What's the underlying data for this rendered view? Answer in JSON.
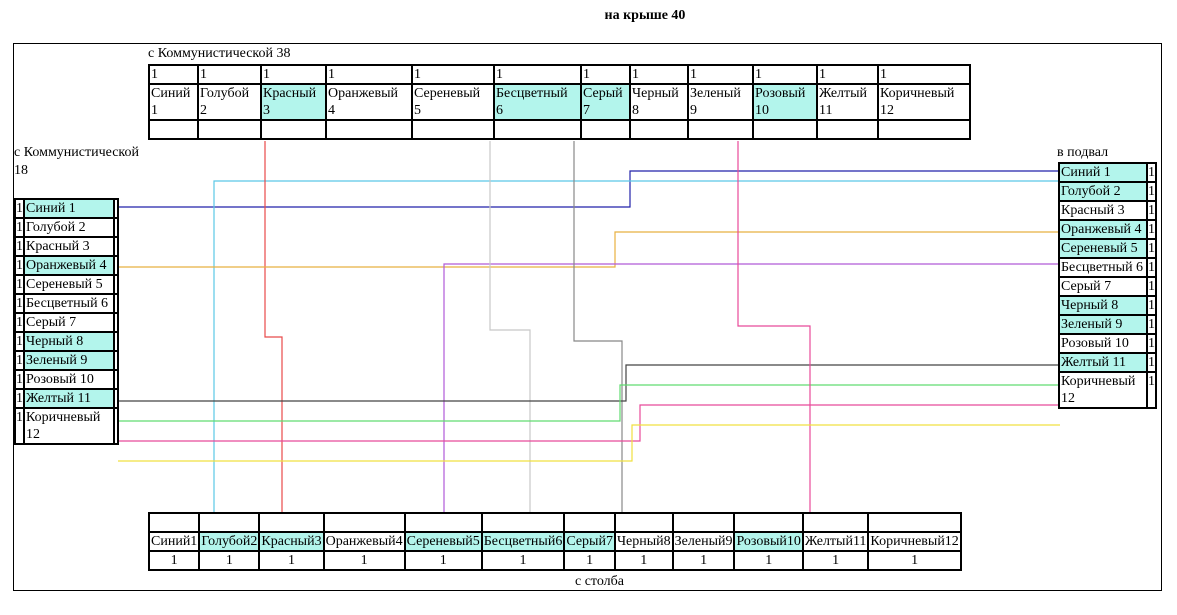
{
  "title": "на крыше 40",
  "top_label": "с Коммунистической 38",
  "left_label": "с Коммунистической 18",
  "right_label": "в подвал",
  "bottom_label": "с столба",
  "colors": {
    "highlight": "#b3f5ec",
    "blue": "#2222aa",
    "cyan": "#5bc8e6",
    "red": "#e84a4a",
    "orange": "#e8b040",
    "violet": "#b05ad8",
    "clear": "#c8c8c8",
    "gray": "#888888",
    "black": "#444444",
    "green": "#60dc70",
    "pink": "#e84a9a",
    "yellow": "#f0e040"
  },
  "top_table": {
    "nums": [
      "1",
      "1",
      "1",
      "1",
      "1",
      "1",
      "1",
      "1",
      "1",
      "1",
      "1",
      "1"
    ],
    "cells": [
      {
        "name": "Синий",
        "n": "1",
        "hl": false
      },
      {
        "name": "Голубой",
        "n": "2",
        "hl": false
      },
      {
        "name": "Красный",
        "n": "3",
        "hl": true
      },
      {
        "name": "Оранжевый",
        "n": "4",
        "hl": false
      },
      {
        "name": "Сереневый",
        "n": "5",
        "hl": false
      },
      {
        "name": "Бесцветный",
        "n": "6",
        "hl": true
      },
      {
        "name": "Серый",
        "n": "7",
        "hl": true
      },
      {
        "name": "Черный",
        "n": "8",
        "hl": false
      },
      {
        "name": "Зеленый",
        "n": "9",
        "hl": false
      },
      {
        "name": "Розовый",
        "n": "10",
        "hl": true
      },
      {
        "name": "Желтый",
        "n": "11",
        "hl": false
      },
      {
        "name": "Коричневый",
        "n": "12",
        "hl": false
      }
    ]
  },
  "left_table": [
    {
      "num": "1",
      "name": "Синий 1",
      "hl": true
    },
    {
      "num": "1",
      "name": "Голубой 2",
      "hl": false
    },
    {
      "num": "1",
      "name": "Красный 3",
      "hl": false
    },
    {
      "num": "1",
      "name": "Оранжевый 4",
      "hl": true
    },
    {
      "num": "1",
      "name": "Сереневый 5",
      "hl": false
    },
    {
      "num": "1",
      "name": "Бесцветный 6",
      "hl": false
    },
    {
      "num": "1",
      "name": "Серый 7",
      "hl": false
    },
    {
      "num": "1",
      "name": "Черный 8",
      "hl": true
    },
    {
      "num": "1",
      "name": "Зеленый 9",
      "hl": true
    },
    {
      "num": "1",
      "name": "Розовый 10",
      "hl": false
    },
    {
      "num": "1",
      "name": "Желтый 11",
      "hl": true
    },
    {
      "num": "1",
      "name": "Коричневый 12",
      "hl": false
    }
  ],
  "right_table": [
    {
      "num": "1",
      "name": "Синий 1",
      "hl": true
    },
    {
      "num": "1",
      "name": "Голубой 2",
      "hl": true
    },
    {
      "num": "1",
      "name": "Красный 3",
      "hl": false
    },
    {
      "num": "1",
      "name": "Оранжевый 4",
      "hl": true
    },
    {
      "num": "1",
      "name": "Сереневый 5",
      "hl": true
    },
    {
      "num": "1",
      "name": "Бесцветный 6",
      "hl": false
    },
    {
      "num": "1",
      "name": "Серый 7",
      "hl": false
    },
    {
      "num": "1",
      "name": "Черный 8",
      "hl": true
    },
    {
      "num": "1",
      "name": "Зеленый 9",
      "hl": true
    },
    {
      "num": "1",
      "name": "Розовый 10",
      "hl": false
    },
    {
      "num": "1",
      "name": "Желтый 11",
      "hl": true
    },
    {
      "num": "1",
      "name": "Коричневый 12",
      "hl": false
    }
  ],
  "bottom_table": [
    {
      "name": "Синий1",
      "num": "1",
      "hl": false
    },
    {
      "name": "Голубой2",
      "num": "1",
      "hl": true
    },
    {
      "name": "Красный3",
      "num": "1",
      "hl": true
    },
    {
      "name": "Оранжевый4",
      "num": "1",
      "hl": false
    },
    {
      "name": "Сереневый5",
      "num": "1",
      "hl": true
    },
    {
      "name": "Бесцветный6",
      "num": "1",
      "hl": true
    },
    {
      "name": "Серый7",
      "num": "1",
      "hl": true
    },
    {
      "name": "Черный8",
      "num": "1",
      "hl": false
    },
    {
      "name": "Зеленый9",
      "num": "1",
      "hl": false
    },
    {
      "name": "Розовый10",
      "num": "1",
      "hl": true
    },
    {
      "name": "Желтый11",
      "num": "1",
      "hl": false
    },
    {
      "name": "Коричневый12",
      "num": "1",
      "hl": false
    }
  ]
}
